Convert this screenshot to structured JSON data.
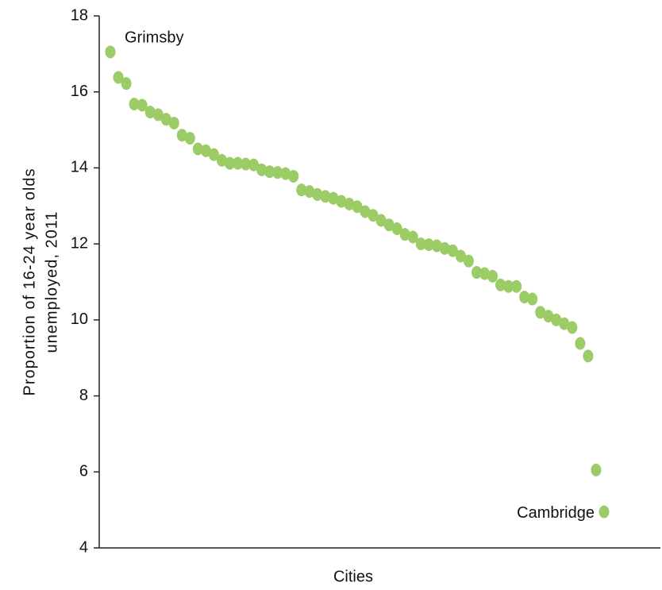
{
  "chart_data": {
    "type": "scatter",
    "xlabel": "Cities",
    "ylabel": [
      "Proportion of 16-24 year olds",
      "unemployed, 2011"
    ],
    "categories": [
      "Grimsby",
      null,
      null,
      null,
      null,
      null,
      null,
      null,
      null,
      null,
      null,
      null,
      null,
      null,
      null,
      null,
      null,
      null,
      null,
      null,
      null,
      null,
      null,
      null,
      null,
      null,
      null,
      null,
      null,
      null,
      null,
      null,
      null,
      null,
      null,
      null,
      null,
      null,
      null,
      null,
      null,
      null,
      null,
      null,
      null,
      null,
      null,
      null,
      null,
      null,
      null,
      null,
      null,
      null,
      null,
      null,
      null,
      null,
      null,
      null,
      null,
      null,
      "Cambridge"
    ],
    "values": [
      17.05,
      16.38,
      16.22,
      15.68,
      15.65,
      15.47,
      15.4,
      15.28,
      15.18,
      14.86,
      14.78,
      14.5,
      14.45,
      14.35,
      14.2,
      14.12,
      14.12,
      14.1,
      14.08,
      13.95,
      13.9,
      13.88,
      13.85,
      13.78,
      13.42,
      13.38,
      13.3,
      13.25,
      13.2,
      13.12,
      13.05,
      12.98,
      12.85,
      12.75,
      12.62,
      12.5,
      12.4,
      12.25,
      12.18,
      12.0,
      11.98,
      11.95,
      11.88,
      11.82,
      11.68,
      11.55,
      11.25,
      11.22,
      11.15,
      10.92,
      10.88,
      10.88,
      10.6,
      10.55,
      10.2,
      10.1,
      10.0,
      9.9,
      9.8,
      9.38,
      9.05,
      6.05,
      4.95
    ],
    "color": "#9ccc65",
    "ylim": [
      4,
      18
    ],
    "yticks": [
      4,
      6,
      8,
      10,
      12,
      14,
      16,
      18
    ],
    "grid": false
  }
}
